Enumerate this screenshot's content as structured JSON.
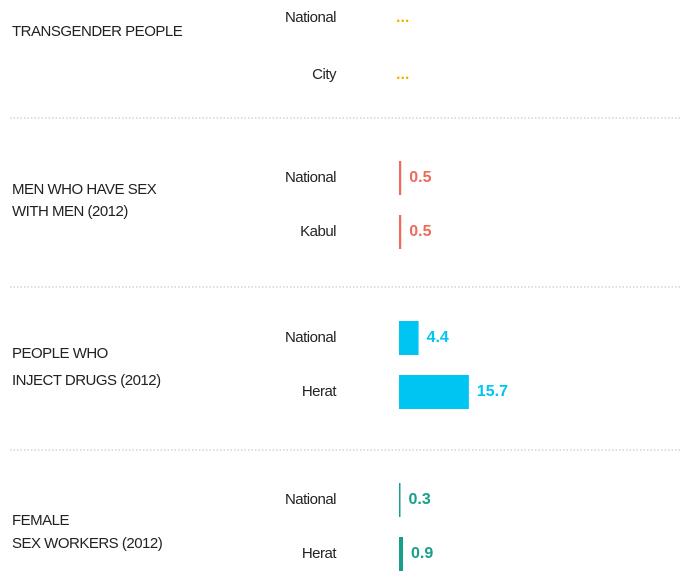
{
  "chart_data": {
    "type": "bar",
    "groups": [
      {
        "label": [
          "TRANSGENDER PEOPLE"
        ],
        "color": "#f0b400",
        "categories": [
          "National",
          "City"
        ],
        "values": [
          null,
          null
        ],
        "value_labels": [
          "...",
          "..."
        ]
      },
      {
        "label": [
          "MEN WHO HAVE SEX",
          "WITH MEN (2012)"
        ],
        "color": "#ee6a5c",
        "categories": [
          "National",
          "Kabul"
        ],
        "values": [
          0.5,
          0.5
        ]
      },
      {
        "label": [
          "PEOPLE WHO",
          "INJECT DRUGS (2012)"
        ],
        "color": "#00c5f2",
        "categories": [
          "National",
          "Herat"
        ],
        "values": [
          4.4,
          15.7
        ]
      },
      {
        "label": [
          "FEMALE",
          "SEX WORKERS (2012)"
        ],
        "color": "#1a9e8c",
        "categories": [
          "National",
          "Herat"
        ],
        "values": [
          0.3,
          0.9
        ]
      }
    ]
  }
}
